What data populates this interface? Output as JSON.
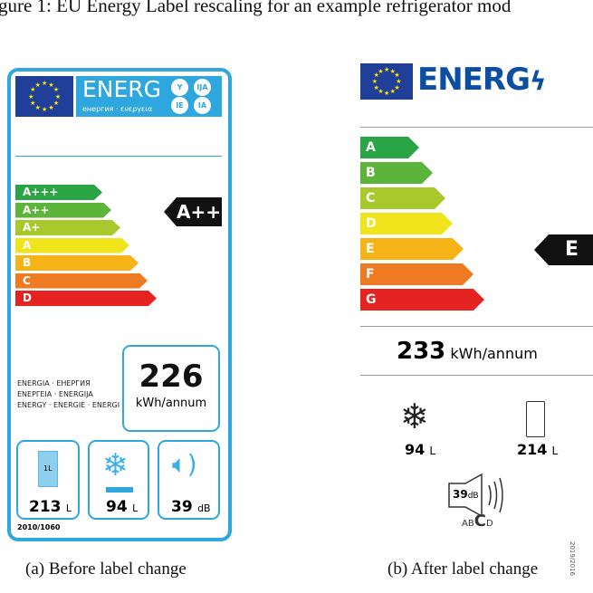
{
  "figure": {
    "title": "gure 1: EU Energy Label rescaling for an example refrigerator mod",
    "caption_a": "(a) Before label change",
    "caption_b": "(b) After label change"
  },
  "old_label": {
    "brand_color": "#2ea6de",
    "header": {
      "energ": "ENERG",
      "subtitle": "енергия · ενεργεια",
      "circles": [
        "Y",
        "IJA",
        "IE",
        "IA"
      ]
    },
    "classes": [
      {
        "label": "A+++",
        "color": "#2aa545"
      },
      {
        "label": "A++",
        "color": "#5cb53a"
      },
      {
        "label": "A+",
        "color": "#a8c92b"
      },
      {
        "label": "A",
        "color": "#f0e51a"
      },
      {
        "label": "B",
        "color": "#f6b317"
      },
      {
        "label": "C",
        "color": "#ee7a22"
      },
      {
        "label": "D",
        "color": "#e52421"
      }
    ],
    "rating": "A++",
    "energy_words": [
      "ENERGIA · ЕНЕРГИЯ",
      "ΕΝΕΡΓΕΙΑ · ENERGIJA",
      "ENERGY · ENERGIE · ENERGI"
    ],
    "consumption": {
      "value": "226",
      "unit": "kWh/annum"
    },
    "fridge": {
      "value": "213",
      "unit": "L",
      "icon_text": "1L"
    },
    "freezer": {
      "value": "94",
      "unit": "L"
    },
    "noise": {
      "value": "39",
      "unit": "dB"
    },
    "regulation": "2010/1060"
  },
  "new_label": {
    "brand_color": "#0b4ea2",
    "header": {
      "energ": "ENERG"
    },
    "classes": [
      {
        "label": "A",
        "color": "#2aa545"
      },
      {
        "label": "B",
        "color": "#5cb53a"
      },
      {
        "label": "C",
        "color": "#a8c92b"
      },
      {
        "label": "D",
        "color": "#f0e51a"
      },
      {
        "label": "E",
        "color": "#f6b317"
      },
      {
        "label": "F",
        "color": "#ee7a22"
      },
      {
        "label": "G",
        "color": "#e52421"
      }
    ],
    "rating": "E",
    "consumption": {
      "value": "233",
      "unit": "kWh/annum"
    },
    "freezer": {
      "value": "94",
      "unit": "L"
    },
    "fridge": {
      "value": "214",
      "unit": "L"
    },
    "noise": {
      "value": "39",
      "unit": "dB",
      "classes": [
        "A",
        "B",
        "C",
        "D"
      ],
      "selected": "C"
    },
    "regulation": "2019/2016"
  }
}
